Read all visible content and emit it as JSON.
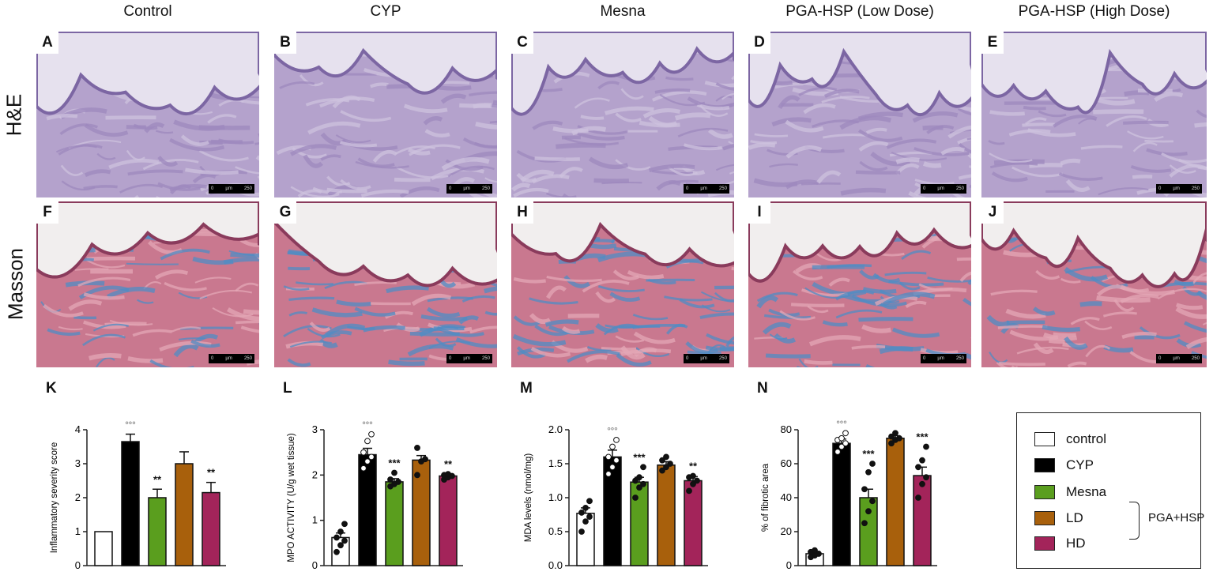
{
  "columns": [
    "Control",
    "CYP",
    "Mesna",
    "PGA-HSP (Low Dose)",
    "PGA-HSP (High Dose)"
  ],
  "rows": [
    "H&E",
    "Masson"
  ],
  "panel_letters": [
    "A",
    "B",
    "C",
    "D",
    "E",
    "F",
    "G",
    "H",
    "I",
    "J"
  ],
  "scale_bar": {
    "left": "0",
    "unit": "µm",
    "right": "250"
  },
  "colors": {
    "control": "#ffffff",
    "CYP": "#000000",
    "Mesna": "#5a9e1e",
    "LD": "#a8600c",
    "HD": "#a3245a",
    "he_bg": "#d9d2e6",
    "he_tissue": "#b4a2cc",
    "masson_blue": "#4f8cc4",
    "masson_red": "#c9788f"
  },
  "legend": {
    "items": [
      {
        "label": "control",
        "color": "#ffffff"
      },
      {
        "label": "CYP",
        "color": "#000000"
      },
      {
        "label": "Mesna",
        "color": "#5a9e1e"
      },
      {
        "label": "LD",
        "color": "#a8600c"
      },
      {
        "label": "HD",
        "color": "#a3245a"
      }
    ],
    "group_label": "PGA+HSP"
  },
  "chart_data": [
    {
      "letter": "K",
      "type": "bar",
      "categories": [
        "control",
        "CYP",
        "Mesna",
        "LD",
        "HD"
      ],
      "values": [
        1.0,
        3.65,
        2.0,
        3.0,
        2.15
      ],
      "errors": [
        0,
        0.22,
        0.25,
        0.35,
        0.3
      ],
      "points": [
        [],
        [],
        [],
        [],
        []
      ],
      "annotations": [
        "",
        "°°°",
        "**",
        "",
        "**"
      ],
      "ylabel": "Inflammatory severity score",
      "ylim": [
        0,
        4
      ],
      "yticks": [
        "0",
        "1",
        "2",
        "3",
        "4"
      ]
    },
    {
      "letter": "L",
      "type": "bar",
      "categories": [
        "control",
        "CYP",
        "Mesna",
        "LD",
        "HD"
      ],
      "values": [
        0.62,
        2.45,
        1.85,
        2.33,
        1.98
      ],
      "errors": [
        0.1,
        0.14,
        0.07,
        0.1,
        0.04
      ],
      "points": [
        [
          0.3,
          0.45,
          0.55,
          0.62,
          0.75,
          0.92
        ],
        [
          2.15,
          2.3,
          2.4,
          2.5,
          2.75,
          2.9
        ],
        [
          1.75,
          1.8,
          1.85,
          1.9,
          2.05
        ],
        [
          2.0,
          2.3,
          2.35,
          2.6
        ],
        [
          1.9,
          1.95,
          1.98,
          2.0,
          2.02
        ]
      ],
      "annotations": [
        "",
        "°°°",
        "***",
        "",
        "**"
      ],
      "ylabel": "MPO ACTIVITY (U/g wet tissue)",
      "ylim": [
        0,
        3
      ],
      "yticks": [
        "0",
        "1",
        "2",
        "3"
      ]
    },
    {
      "letter": "M",
      "type": "bar",
      "categories": [
        "control",
        "CYP",
        "Mesna",
        "LD",
        "HD"
      ],
      "values": [
        0.77,
        1.6,
        1.23,
        1.48,
        1.25
      ],
      "errors": [
        0.08,
        0.1,
        0.07,
        0.05,
        0.06
      ],
      "points": [
        [
          0.5,
          0.65,
          0.72,
          0.78,
          0.85,
          0.95
        ],
        [
          1.35,
          1.45,
          1.55,
          1.6,
          1.75,
          1.85
        ],
        [
          1.0,
          1.15,
          1.2,
          1.25,
          1.3,
          1.45
        ],
        [
          1.4,
          1.45,
          1.5,
          1.55,
          1.6
        ],
        [
          1.1,
          1.2,
          1.25,
          1.3,
          1.32
        ]
      ],
      "annotations": [
        "",
        "°°°",
        "***",
        "",
        "**"
      ],
      "ylabel": "MDA levels (nmol/mg)",
      "ylim": [
        0,
        2
      ],
      "yticks": [
        "0.0",
        "0.5",
        "1.0",
        "1.5",
        "2.0"
      ]
    },
    {
      "letter": "N",
      "type": "bar",
      "categories": [
        "control",
        "CYP",
        "Mesna",
        "LD",
        "HD"
      ],
      "values": [
        7,
        72,
        40,
        75,
        53
      ],
      "errors": [
        1,
        2.5,
        5,
        1.5,
        5
      ],
      "points": [
        [
          5,
          6,
          7,
          8,
          9
        ],
        [
          67,
          70,
          72,
          74,
          75,
          78
        ],
        [
          25,
          32,
          38,
          45,
          55,
          60
        ],
        [
          72,
          74,
          75,
          76,
          78
        ],
        [
          40,
          48,
          52,
          58,
          62,
          70
        ]
      ],
      "annotations": [
        "",
        "°°°",
        "***",
        "",
        "***"
      ],
      "ylabel": "% of fibrotic area",
      "ylim": [
        0,
        80
      ],
      "yticks": [
        "0",
        "20",
        "40",
        "60",
        "80"
      ]
    }
  ]
}
